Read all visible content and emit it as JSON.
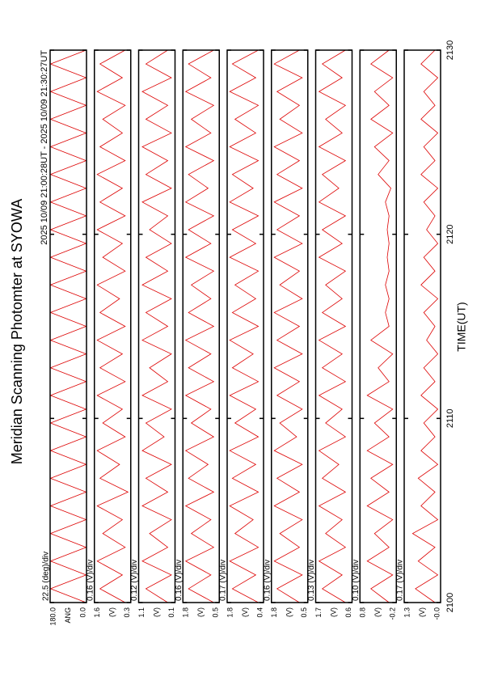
{
  "title": "Meridian Scanning Photomter at SYOWA",
  "subtitle": "2025 10/09 21:00:28UT - 2025 10/09 21:30:27UT",
  "xlabel": "TIME(UT)",
  "xlim": [
    2100,
    2130
  ],
  "xticks": [
    2100,
    2110,
    2120,
    2130
  ],
  "x": [
    2100,
    2100.75,
    2101.5,
    2102.25,
    2103,
    2103.75,
    2104.5,
    2105.25,
    2106,
    2106.75,
    2107.5,
    2108.25,
    2109,
    2109.75,
    2110.5,
    2111.25,
    2112,
    2112.75,
    2113.5,
    2114.25,
    2115,
    2115.75,
    2116.5,
    2117.25,
    2118,
    2118.75,
    2119.5,
    2120.25,
    2121,
    2121.75,
    2122.5,
    2123.25,
    2124,
    2124.75,
    2125.5,
    2126.25,
    2127,
    2127.75,
    2128.5,
    2129.25,
    2130
  ],
  "chart_data": [
    {
      "type": "line",
      "annotation": "22.5 (deg)/div",
      "ylabel": "ANG",
      "color": "#dd0000",
      "ylim": [
        0,
        180
      ],
      "yticks": [
        {
          "value": 0,
          "label": "0.0"
        },
        {
          "value": 180,
          "label": "180.0"
        }
      ],
      "values": [
        2,
        178,
        2,
        178,
        2,
        178,
        2,
        178,
        2,
        178,
        2,
        178,
        2,
        178,
        2,
        178,
        2,
        178,
        2,
        178,
        2,
        178,
        2,
        178,
        2,
        178,
        2,
        178,
        2,
        178,
        2,
        178,
        2,
        178,
        2,
        178,
        2,
        178,
        2,
        178,
        2
      ]
    },
    {
      "type": "line",
      "annotation": "0.16 (V)/div",
      "ylabel": "(V)",
      "color": "#dd0000",
      "ylim": [
        0.3,
        1.6
      ],
      "yticks": [
        0.3,
        1.6
      ],
      "values": [
        0.5,
        1.4,
        0.6,
        1.5,
        0.5,
        1.3,
        0.6,
        1.5,
        0.4,
        1.4,
        0.7,
        1.5,
        0.5,
        1.3,
        0.6,
        1.5,
        0.5,
        1.4,
        0.6,
        1.5,
        0.5,
        1.4,
        0.7,
        1.5,
        0.5,
        1.3,
        0.6,
        1.5,
        0.5,
        1.4,
        0.6,
        1.5,
        0.5,
        1.4,
        0.6,
        1.3,
        0.5,
        1.5,
        0.6,
        1.4,
        0.5
      ]
    },
    {
      "type": "line",
      "annotation": "0.12 (V)/div",
      "ylabel": "(V)",
      "color": "#dd0000",
      "ylim": [
        0.1,
        1.1
      ],
      "yticks": [
        0.1,
        1.1
      ],
      "values": [
        0.3,
        0.9,
        0.2,
        1.0,
        0.3,
        0.8,
        0.2,
        1.0,
        0.3,
        0.9,
        0.2,
        1.0,
        0.4,
        0.9,
        0.2,
        1.0,
        0.3,
        0.8,
        0.2,
        1.0,
        0.3,
        0.9,
        0.2,
        1.0,
        0.3,
        0.9,
        0.2,
        0.8,
        0.3,
        1.0,
        0.2,
        0.9,
        0.3,
        1.0,
        0.2,
        0.9,
        0.3,
        1.0,
        0.2,
        0.9,
        0.3
      ]
    },
    {
      "type": "line",
      "annotation": "0.16 (V)/div",
      "ylabel": "(V)",
      "color": "#dd0000",
      "ylim": [
        0.5,
        1.8
      ],
      "yticks": [
        0.5,
        1.8
      ],
      "values": [
        0.7,
        1.6,
        0.8,
        1.7,
        0.7,
        1.5,
        0.8,
        1.7,
        0.7,
        1.6,
        0.9,
        1.7,
        0.7,
        1.5,
        0.8,
        1.7,
        0.7,
        1.6,
        0.8,
        1.7,
        0.7,
        1.6,
        0.8,
        1.5,
        0.7,
        1.7,
        0.8,
        1.6,
        0.7,
        1.7,
        0.9,
        1.6,
        0.7,
        1.7,
        0.8,
        1.5,
        0.7,
        1.7,
        0.8,
        1.6,
        0.7
      ]
    },
    {
      "type": "line",
      "annotation": "0.17 (V)/div",
      "ylabel": "(V)",
      "color": "#dd0000",
      "ylim": [
        0.4,
        1.8
      ],
      "yticks": [
        0.4,
        1.8
      ],
      "values": [
        0.6,
        1.6,
        0.7,
        1.7,
        0.6,
        1.5,
        0.8,
        1.7,
        0.6,
        1.6,
        0.7,
        1.7,
        0.6,
        1.5,
        0.7,
        1.7,
        0.6,
        1.6,
        0.8,
        1.7,
        0.6,
        1.6,
        0.7,
        1.5,
        0.6,
        1.7,
        0.7,
        1.6,
        0.6,
        1.7,
        0.8,
        1.6,
        0.6,
        1.7,
        0.7,
        1.5,
        0.6,
        1.7,
        0.7,
        1.6,
        0.6
      ]
    },
    {
      "type": "line",
      "annotation": "0.16 (V)/div",
      "ylabel": "(V)",
      "color": "#dd0000",
      "ylim": [
        0.5,
        1.8
      ],
      "yticks": [
        0.5,
        1.8
      ],
      "values": [
        0.8,
        1.6,
        0.7,
        1.7,
        0.8,
        1.5,
        0.7,
        1.7,
        0.8,
        1.6,
        0.7,
        1.7,
        0.9,
        1.5,
        0.7,
        1.6,
        0.8,
        1.7,
        0.7,
        1.6,
        0.8,
        1.7,
        0.7,
        1.5,
        0.8,
        1.7,
        0.7,
        1.6,
        0.8,
        1.7,
        0.7,
        1.6,
        0.8,
        1.7,
        0.7,
        1.5,
        0.8,
        1.6,
        0.7,
        1.7,
        0.8
      ]
    },
    {
      "type": "line",
      "annotation": "0.13 (V)/div",
      "ylabel": "(V)",
      "color": "#dd0000",
      "ylim": [
        0.6,
        1.7
      ],
      "yticks": [
        0.6,
        1.7
      ],
      "values": [
        0.8,
        1.5,
        0.9,
        1.6,
        0.8,
        1.4,
        0.9,
        1.6,
        0.8,
        1.5,
        1.0,
        1.6,
        0.8,
        1.4,
        0.9,
        1.6,
        0.8,
        1.5,
        0.9,
        1.6,
        0.8,
        1.5,
        0.9,
        1.4,
        0.8,
        1.6,
        0.9,
        1.5,
        0.8,
        1.6,
        1.0,
        1.5,
        0.8,
        1.6,
        0.9,
        1.4,
        0.8,
        1.6,
        0.9,
        1.5,
        0.8
      ]
    },
    {
      "type": "line",
      "annotation": "0.10 (V)/div",
      "ylabel": "(V)",
      "color": "#dd0000",
      "ylim": [
        -0.2,
        0.8
      ],
      "yticks": [
        -0.2,
        0.8
      ],
      "values": [
        0.0,
        0.5,
        -0.1,
        0.6,
        0.0,
        0.4,
        -0.1,
        0.6,
        0.0,
        0.5,
        -0.1,
        0.6,
        0.0,
        0.4,
        -0.1,
        0.6,
        0.0,
        0.3,
        -0.1,
        0.5,
        0.0,
        0.1,
        0.0,
        0.1,
        0.0,
        0.05,
        0.0,
        0.05,
        0.0,
        0.1,
        -0.05,
        0.3,
        0.0,
        0.4,
        -0.1,
        0.5,
        0.0,
        0.4,
        -0.1,
        0.5,
        0.0
      ]
    },
    {
      "type": "line",
      "annotation": "0.17 (V)/div",
      "ylabel": "(V)",
      "color": "#dd0000",
      "ylim": [
        0,
        1.3
      ],
      "yticks": [
        {
          "value": 0,
          "label": "-0.0"
        },
        1.3
      ],
      "values": [
        0.2,
        0.9,
        0.1,
        0.8,
        0.2,
        1.0,
        0.1,
        0.7,
        0.2,
        0.8,
        0.1,
        0.7,
        0.2,
        0.6,
        0.1,
        0.7,
        0.2,
        0.6,
        0.1,
        0.5,
        0.2,
        0.6,
        0.1,
        0.7,
        0.2,
        0.6,
        0.1,
        0.5,
        0.2,
        0.6,
        0.1,
        0.7,
        0.2,
        0.6,
        0.1,
        0.7,
        0.2,
        0.6,
        0.1,
        0.7,
        0.2
      ]
    }
  ]
}
